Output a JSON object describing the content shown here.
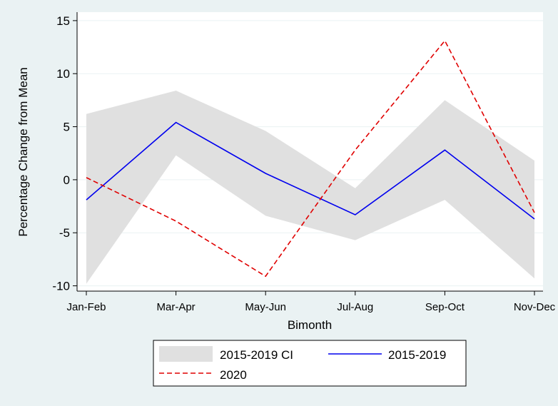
{
  "chart_data": {
    "type": "line",
    "title": "",
    "xlabel": "Bimonth",
    "ylabel": "Percentage Change from Mean",
    "categories": [
      "Jan-Feb",
      "Mar-Apr",
      "May-Jun",
      "Jul-Aug",
      "Sep-Oct",
      "Nov-Dec"
    ],
    "ylim": [
      -10.5,
      15.8
    ],
    "yticks": [
      -10,
      -5,
      0,
      5,
      10,
      15
    ],
    "grid": "horizontal",
    "legend_position": "bottom",
    "band": {
      "name": "2015-2019 CI",
      "upper": [
        6.2,
        8.4,
        4.6,
        -0.8,
        7.5,
        1.8
      ],
      "lower": [
        -9.8,
        2.3,
        -3.4,
        -5.7,
        -1.9,
        -9.3
      ],
      "color": "#e0e0e0"
    },
    "series": [
      {
        "name": "2015-2019",
        "values": [
          -1.9,
          5.4,
          0.6,
          -3.3,
          2.8,
          -3.7
        ],
        "color": "#0000ee",
        "style": "solid"
      },
      {
        "name": "2020",
        "values": [
          0.2,
          -3.9,
          -9.1,
          2.8,
          13.1,
          -3.1
        ],
        "color": "#e00000",
        "style": "dashed"
      }
    ]
  }
}
